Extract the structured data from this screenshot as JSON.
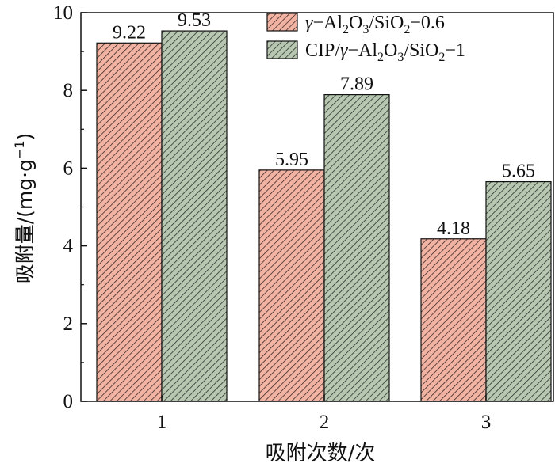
{
  "chart_data": {
    "type": "bar",
    "title": "",
    "xlabel": "吸附次数/次",
    "ylabel_main": "吸附量/(mg·g",
    "ylabel_sup": "−1",
    "ylabel_close": ")",
    "categories": [
      "1",
      "2",
      "3"
    ],
    "ylim": [
      0,
      10
    ],
    "yticks": [
      "0",
      "2",
      "4",
      "6",
      "8",
      "10"
    ],
    "grid": false,
    "legend_position": "top-right",
    "series": [
      {
        "name_parts": [
          {
            "t": "γ",
            "i": true
          },
          {
            "t": "−Al"
          },
          {
            "t": "2",
            "sub": true
          },
          {
            "t": "O"
          },
          {
            "t": "3",
            "sub": true
          },
          {
            "t": "/SiO"
          },
          {
            "t": "2",
            "sub": true
          },
          {
            "t": "−0.6"
          }
        ],
        "values": [
          9.22,
          5.95,
          4.18
        ],
        "labels": [
          "9.22",
          "5.95",
          "4.18"
        ],
        "color": "#f2b3a3",
        "hatch": "#3a2a26"
      },
      {
        "name_parts": [
          {
            "t": "CIP/"
          },
          {
            "t": "γ",
            "i": true
          },
          {
            "t": "−Al"
          },
          {
            "t": "2",
            "sub": true
          },
          {
            "t": "O"
          },
          {
            "t": "3",
            "sub": true
          },
          {
            "t": "/SiO"
          },
          {
            "t": "2",
            "sub": true
          },
          {
            "t": "−1"
          }
        ],
        "values": [
          9.53,
          7.89,
          5.65
        ],
        "labels": [
          "9.53",
          "7.89",
          "5.65"
        ],
        "color": "#b7c7b1",
        "hatch": "#2a322a"
      }
    ]
  }
}
